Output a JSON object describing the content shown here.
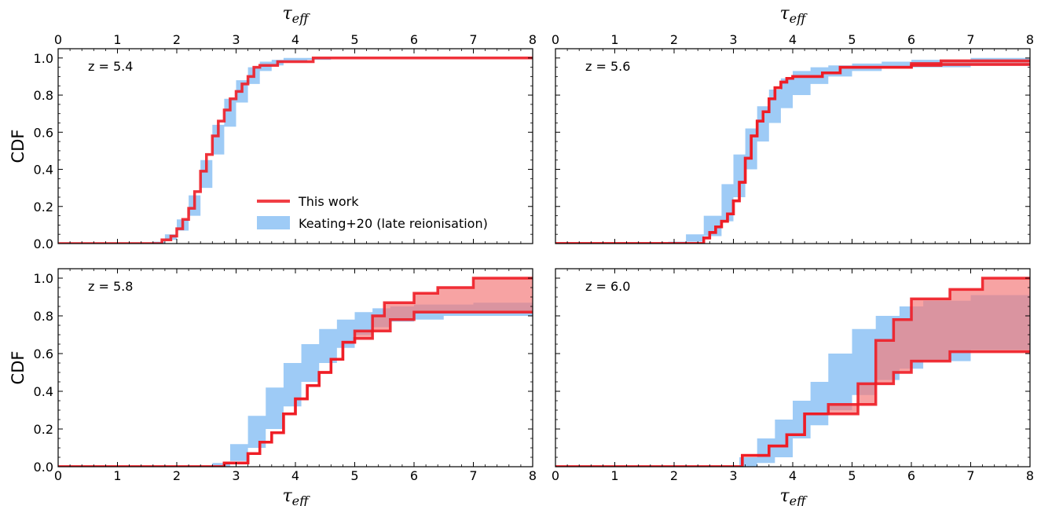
{
  "colors": {
    "this_work": "#ee1c25",
    "this_work_fill": "#f47c7c",
    "keating": "#9ecbf6"
  },
  "chart_data": [
    {
      "type": "line",
      "panel": "top-left",
      "annotation": "z = 5.4",
      "xlabel": "τ_eff",
      "ylabel": "CDF",
      "xlim": [
        0,
        8
      ],
      "ylim": [
        0,
        1.05
      ],
      "xticks": [
        0,
        1,
        2,
        3,
        4,
        5,
        6,
        7,
        8
      ],
      "yticks": [
        "0.0",
        "0.2",
        "0.4",
        "0.6",
        "0.8",
        "1.0"
      ],
      "legend": {
        "placement": "lower-right",
        "entries": [
          "This work",
          "Keating+20 (late reionisation)"
        ]
      },
      "series": [
        {
          "name": "This work",
          "style": "step",
          "x": [
            0,
            1.7,
            1.75,
            1.9,
            2.0,
            2.1,
            2.2,
            2.3,
            2.4,
            2.5,
            2.6,
            2.7,
            2.8,
            2.9,
            3.0,
            3.1,
            3.2,
            3.3,
            3.4,
            3.7,
            4.3,
            8
          ],
          "y": [
            0,
            0,
            0.02,
            0.04,
            0.08,
            0.13,
            0.19,
            0.28,
            0.39,
            0.48,
            0.58,
            0.66,
            0.72,
            0.78,
            0.82,
            0.86,
            0.9,
            0.95,
            0.96,
            0.98,
            1.0,
            1.0
          ]
        },
        {
          "name": "Keating+20 (late reionisation)",
          "style": "band",
          "x": [
            0,
            1.6,
            1.8,
            2.0,
            2.2,
            2.4,
            2.6,
            2.8,
            3.0,
            3.2,
            3.4,
            3.6,
            3.8,
            4.2,
            4.6,
            5.2,
            8
          ],
          "lo": [
            0,
            0,
            0.02,
            0.07,
            0.15,
            0.3,
            0.48,
            0.63,
            0.76,
            0.86,
            0.93,
            0.96,
            0.98,
            0.99,
            1.0,
            1.0,
            1.0
          ],
          "hi": [
            0,
            0.01,
            0.05,
            0.13,
            0.26,
            0.45,
            0.64,
            0.78,
            0.88,
            0.95,
            0.98,
            0.99,
            1.0,
            1.0,
            1.0,
            1.0,
            1.0
          ]
        }
      ]
    },
    {
      "type": "line",
      "panel": "top-right",
      "annotation": "z = 5.6",
      "xlabel": "τ_eff",
      "ylabel": "",
      "xlim": [
        0,
        8
      ],
      "ylim": [
        0,
        1.05
      ],
      "xticks": [
        0,
        1,
        2,
        3,
        4,
        5,
        6,
        7,
        8
      ],
      "yticks": [],
      "series": [
        {
          "name": "This work",
          "style": "step",
          "x": [
            0,
            2.4,
            2.5,
            2.6,
            2.7,
            2.8,
            2.9,
            3.0,
            3.1,
            3.2,
            3.3,
            3.4,
            3.5,
            3.6,
            3.7,
            3.8,
            3.9,
            4.0,
            4.5,
            4.8,
            6.0,
            6.5,
            8
          ],
          "y": [
            0,
            0,
            0.03,
            0.06,
            0.09,
            0.12,
            0.16,
            0.23,
            0.33,
            0.46,
            0.58,
            0.66,
            0.71,
            0.78,
            0.84,
            0.87,
            0.89,
            0.9,
            0.92,
            0.95,
            0.97,
            0.985,
            0.99
          ]
        },
        {
          "name": "",
          "style": "step",
          "x": [
            0,
            2.4,
            2.5,
            2.6,
            2.7,
            2.8,
            2.9,
            3.0,
            3.1,
            3.2,
            3.3,
            3.4,
            3.5,
            3.6,
            3.7,
            3.8,
            3.9,
            4.0,
            4.5,
            4.8,
            6.0,
            6.5,
            8
          ],
          "y": [
            0,
            0,
            0.03,
            0.06,
            0.09,
            0.12,
            0.16,
            0.23,
            0.33,
            0.46,
            0.58,
            0.66,
            0.71,
            0.78,
            0.84,
            0.87,
            0.89,
            0.9,
            0.92,
            0.95,
            0.96,
            0.965,
            0.97
          ]
        },
        {
          "name": "",
          "style": "band",
          "x": [
            0,
            1.9,
            2.2,
            2.5,
            2.8,
            3.0,
            3.2,
            3.4,
            3.6,
            3.8,
            4.0,
            4.3,
            4.6,
            5.0,
            5.5,
            6.0,
            7.0,
            8
          ],
          "lo": [
            0,
            0,
            0.01,
            0.04,
            0.12,
            0.25,
            0.4,
            0.55,
            0.65,
            0.73,
            0.8,
            0.86,
            0.9,
            0.93,
            0.95,
            0.95,
            0.96,
            0.96
          ],
          "hi": [
            0,
            0.01,
            0.05,
            0.15,
            0.32,
            0.48,
            0.62,
            0.74,
            0.83,
            0.89,
            0.93,
            0.95,
            0.96,
            0.97,
            0.98,
            0.99,
            1.0,
            1.0
          ]
        }
      ]
    },
    {
      "type": "line",
      "panel": "bottom-left",
      "annotation": "z = 5.8",
      "xlabel": "τ_eff",
      "ylabel": "CDF",
      "xlim": [
        0,
        8
      ],
      "ylim": [
        0,
        1.05
      ],
      "xticks": [
        0,
        1,
        2,
        3,
        4,
        5,
        6,
        7,
        8
      ],
      "yticks": [
        "0.0",
        "0.2",
        "0.4",
        "0.6",
        "0.8",
        "1.0"
      ],
      "series": [
        {
          "name": "This work",
          "style": "step",
          "x": [
            0,
            2.4,
            2.8,
            3.2,
            3.4,
            3.6,
            3.8,
            4.0,
            4.2,
            4.4,
            4.6,
            4.8,
            5.0,
            5.3,
            5.5,
            6.0,
            6.4,
            7.0,
            8
          ],
          "y": [
            0,
            0,
            0.02,
            0.07,
            0.13,
            0.18,
            0.28,
            0.36,
            0.43,
            0.5,
            0.57,
            0.66,
            0.72,
            0.8,
            0.87,
            0.92,
            0.95,
            1.0,
            1.0
          ]
        },
        {
          "name": "",
          "style": "step",
          "x": [
            0,
            2.4,
            2.8,
            3.2,
            3.4,
            3.6,
            3.8,
            4.0,
            4.2,
            4.4,
            4.6,
            4.8,
            5.0,
            5.3,
            5.6,
            6.0,
            8
          ],
          "y": [
            0,
            0,
            0.02,
            0.07,
            0.13,
            0.18,
            0.28,
            0.36,
            0.43,
            0.5,
            0.57,
            0.66,
            0.68,
            0.72,
            0.78,
            0.82,
            0.82
          ]
        },
        {
          "name": "",
          "style": "band",
          "x": [
            0,
            2.6,
            2.9,
            3.2,
            3.5,
            3.8,
            4.1,
            4.4,
            4.7,
            5.0,
            5.3,
            5.6,
            6.0,
            6.5,
            7.0,
            8
          ],
          "lo": [
            0,
            0,
            0.03,
            0.1,
            0.2,
            0.32,
            0.45,
            0.55,
            0.63,
            0.7,
            0.74,
            0.77,
            0.78,
            0.8,
            0.8,
            0.8
          ],
          "hi": [
            0,
            0.02,
            0.12,
            0.27,
            0.42,
            0.55,
            0.65,
            0.73,
            0.78,
            0.82,
            0.84,
            0.85,
            0.86,
            0.86,
            0.87,
            0.87
          ]
        }
      ]
    },
    {
      "type": "line",
      "panel": "bottom-right",
      "annotation": "z = 6.0",
      "xlabel": "τ_eff",
      "ylabel": "",
      "xlim": [
        0,
        8
      ],
      "ylim": [
        0,
        1.05
      ],
      "xticks": [
        0,
        1,
        2,
        3,
        4,
        5,
        6,
        7,
        8
      ],
      "yticks": [],
      "series": [
        {
          "name": "This work",
          "style": "step",
          "x": [
            0,
            2.85,
            3.15,
            3.6,
            3.9,
            4.2,
            4.6,
            5.1,
            5.4,
            5.7,
            6.0,
            6.65,
            7.2,
            8
          ],
          "y": [
            0,
            0,
            0.06,
            0.11,
            0.17,
            0.28,
            0.33,
            0.44,
            0.67,
            0.78,
            0.89,
            0.94,
            1.0,
            1.0
          ]
        },
        {
          "name": "",
          "style": "step",
          "x": [
            0,
            2.85,
            3.15,
            3.6,
            3.9,
            4.2,
            4.6,
            5.1,
            5.4,
            5.7,
            6.0,
            6.65,
            8
          ],
          "y": [
            0,
            0,
            0.06,
            0.11,
            0.17,
            0.28,
            0.28,
            0.33,
            0.44,
            0.5,
            0.56,
            0.61,
            0.61
          ]
        },
        {
          "name": "",
          "style": "band",
          "x": [
            0,
            3.1,
            3.4,
            3.7,
            4.0,
            4.3,
            4.6,
            5.0,
            5.4,
            5.8,
            6.2,
            7.0,
            8
          ],
          "lo": [
            0,
            0,
            0.02,
            0.05,
            0.15,
            0.22,
            0.3,
            0.38,
            0.46,
            0.52,
            0.56,
            0.62,
            0.65
          ],
          "hi": [
            0,
            0.05,
            0.15,
            0.25,
            0.35,
            0.45,
            0.6,
            0.73,
            0.8,
            0.85,
            0.88,
            0.91,
            0.93
          ]
        }
      ]
    }
  ]
}
